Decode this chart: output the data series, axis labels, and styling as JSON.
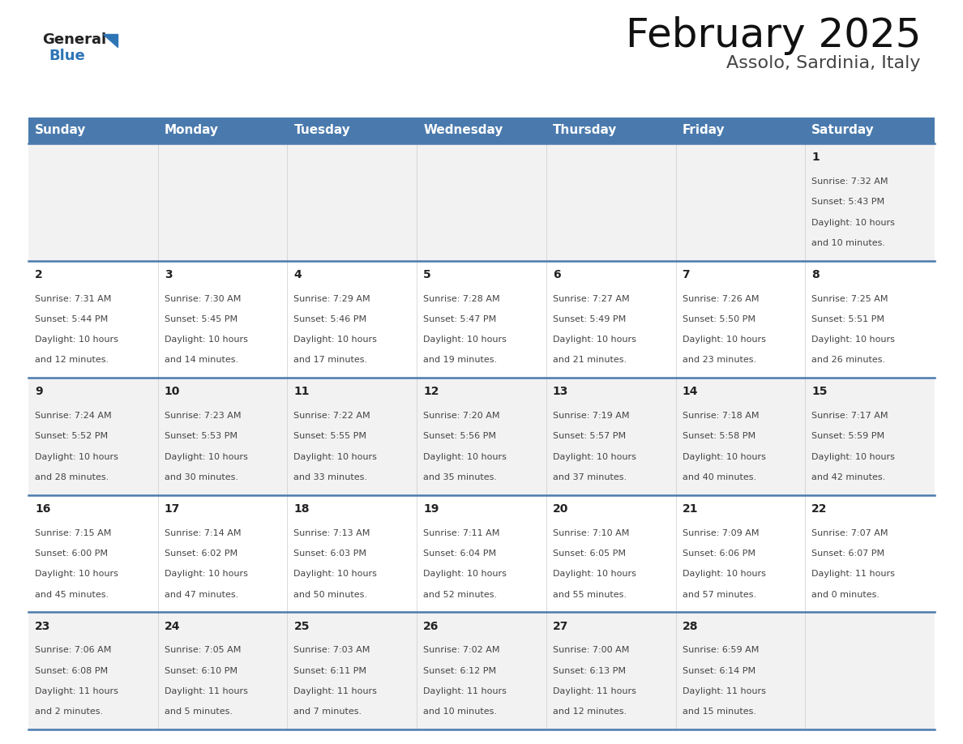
{
  "title": "February 2025",
  "subtitle": "Assolo, Sardinia, Italy",
  "days_of_week": [
    "Sunday",
    "Monday",
    "Tuesday",
    "Wednesday",
    "Thursday",
    "Friday",
    "Saturday"
  ],
  "header_bg": "#4a7aad",
  "header_text": "#FFFFFF",
  "row_bg_even": "#f2f2f2",
  "row_bg_odd": "#ffffff",
  "cell_text_color": "#444444",
  "day_num_color": "#222222",
  "border_color": "#4a7aad",
  "title_color": "#111111",
  "subtitle_color": "#444444",
  "logo_general_color": "#222222",
  "logo_blue_color": "#2e75b6",
  "weeks": [
    [
      {
        "day": null,
        "sunrise": null,
        "sunset": null,
        "daylight": null
      },
      {
        "day": null,
        "sunrise": null,
        "sunset": null,
        "daylight": null
      },
      {
        "day": null,
        "sunrise": null,
        "sunset": null,
        "daylight": null
      },
      {
        "day": null,
        "sunrise": null,
        "sunset": null,
        "daylight": null
      },
      {
        "day": null,
        "sunrise": null,
        "sunset": null,
        "daylight": null
      },
      {
        "day": null,
        "sunrise": null,
        "sunset": null,
        "daylight": null
      },
      {
        "day": 1,
        "sunrise": "7:32 AM",
        "sunset": "5:43 PM",
        "daylight": "10 hours\nand 10 minutes."
      }
    ],
    [
      {
        "day": 2,
        "sunrise": "7:31 AM",
        "sunset": "5:44 PM",
        "daylight": "10 hours\nand 12 minutes."
      },
      {
        "day": 3,
        "sunrise": "7:30 AM",
        "sunset": "5:45 PM",
        "daylight": "10 hours\nand 14 minutes."
      },
      {
        "day": 4,
        "sunrise": "7:29 AM",
        "sunset": "5:46 PM",
        "daylight": "10 hours\nand 17 minutes."
      },
      {
        "day": 5,
        "sunrise": "7:28 AM",
        "sunset": "5:47 PM",
        "daylight": "10 hours\nand 19 minutes."
      },
      {
        "day": 6,
        "sunrise": "7:27 AM",
        "sunset": "5:49 PM",
        "daylight": "10 hours\nand 21 minutes."
      },
      {
        "day": 7,
        "sunrise": "7:26 AM",
        "sunset": "5:50 PM",
        "daylight": "10 hours\nand 23 minutes."
      },
      {
        "day": 8,
        "sunrise": "7:25 AM",
        "sunset": "5:51 PM",
        "daylight": "10 hours\nand 26 minutes."
      }
    ],
    [
      {
        "day": 9,
        "sunrise": "7:24 AM",
        "sunset": "5:52 PM",
        "daylight": "10 hours\nand 28 minutes."
      },
      {
        "day": 10,
        "sunrise": "7:23 AM",
        "sunset": "5:53 PM",
        "daylight": "10 hours\nand 30 minutes."
      },
      {
        "day": 11,
        "sunrise": "7:22 AM",
        "sunset": "5:55 PM",
        "daylight": "10 hours\nand 33 minutes."
      },
      {
        "day": 12,
        "sunrise": "7:20 AM",
        "sunset": "5:56 PM",
        "daylight": "10 hours\nand 35 minutes."
      },
      {
        "day": 13,
        "sunrise": "7:19 AM",
        "sunset": "5:57 PM",
        "daylight": "10 hours\nand 37 minutes."
      },
      {
        "day": 14,
        "sunrise": "7:18 AM",
        "sunset": "5:58 PM",
        "daylight": "10 hours\nand 40 minutes."
      },
      {
        "day": 15,
        "sunrise": "7:17 AM",
        "sunset": "5:59 PM",
        "daylight": "10 hours\nand 42 minutes."
      }
    ],
    [
      {
        "day": 16,
        "sunrise": "7:15 AM",
        "sunset": "6:00 PM",
        "daylight": "10 hours\nand 45 minutes."
      },
      {
        "day": 17,
        "sunrise": "7:14 AM",
        "sunset": "6:02 PM",
        "daylight": "10 hours\nand 47 minutes."
      },
      {
        "day": 18,
        "sunrise": "7:13 AM",
        "sunset": "6:03 PM",
        "daylight": "10 hours\nand 50 minutes."
      },
      {
        "day": 19,
        "sunrise": "7:11 AM",
        "sunset": "6:04 PM",
        "daylight": "10 hours\nand 52 minutes."
      },
      {
        "day": 20,
        "sunrise": "7:10 AM",
        "sunset": "6:05 PM",
        "daylight": "10 hours\nand 55 minutes."
      },
      {
        "day": 21,
        "sunrise": "7:09 AM",
        "sunset": "6:06 PM",
        "daylight": "10 hours\nand 57 minutes."
      },
      {
        "day": 22,
        "sunrise": "7:07 AM",
        "sunset": "6:07 PM",
        "daylight": "11 hours\nand 0 minutes."
      }
    ],
    [
      {
        "day": 23,
        "sunrise": "7:06 AM",
        "sunset": "6:08 PM",
        "daylight": "11 hours\nand 2 minutes."
      },
      {
        "day": 24,
        "sunrise": "7:05 AM",
        "sunset": "6:10 PM",
        "daylight": "11 hours\nand 5 minutes."
      },
      {
        "day": 25,
        "sunrise": "7:03 AM",
        "sunset": "6:11 PM",
        "daylight": "11 hours\nand 7 minutes."
      },
      {
        "day": 26,
        "sunrise": "7:02 AM",
        "sunset": "6:12 PM",
        "daylight": "11 hours\nand 10 minutes."
      },
      {
        "day": 27,
        "sunrise": "7:00 AM",
        "sunset": "6:13 PM",
        "daylight": "11 hours\nand 12 minutes."
      },
      {
        "day": 28,
        "sunrise": "6:59 AM",
        "sunset": "6:14 PM",
        "daylight": "11 hours\nand 15 minutes."
      },
      {
        "day": null,
        "sunrise": null,
        "sunset": null,
        "daylight": null
      }
    ]
  ],
  "figsize": [
    11.88,
    9.18
  ],
  "dpi": 100,
  "title_fontsize": 36,
  "subtitle_fontsize": 16,
  "header_fontsize": 11,
  "day_num_fontsize": 10,
  "cell_fontsize": 8
}
